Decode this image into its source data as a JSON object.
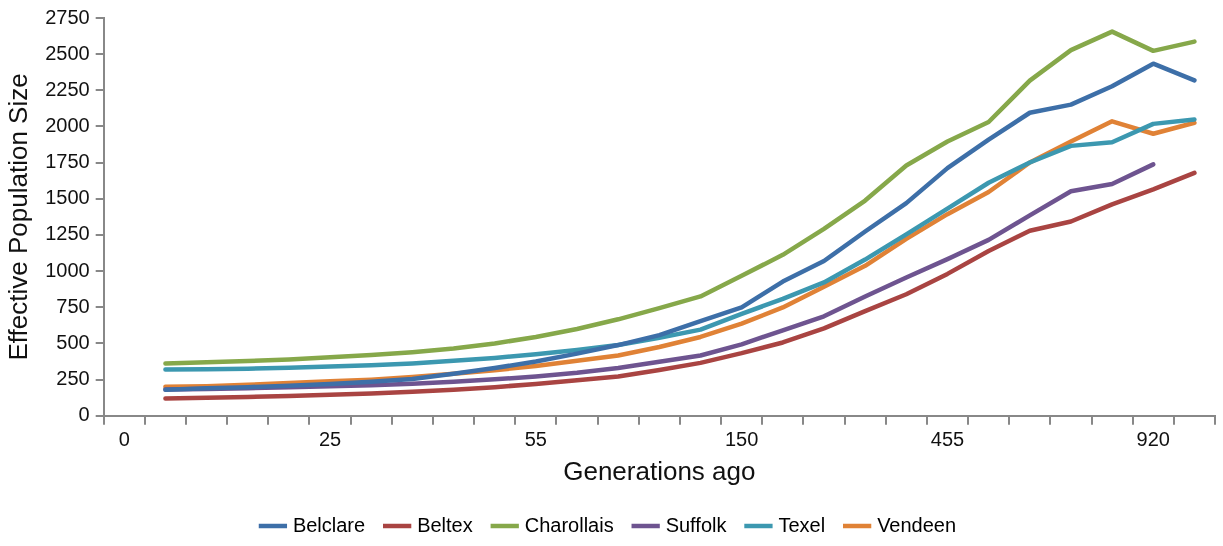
{
  "chart_data": {
    "type": "line",
    "xlabel": "Generations ago",
    "ylabel": "Effective Population Size",
    "categories": [
      "0",
      null,
      null,
      null,
      null,
      "25",
      null,
      null,
      null,
      null,
      "55",
      null,
      null,
      null,
      null,
      "150",
      null,
      null,
      null,
      null,
      "455",
      null,
      null,
      null,
      null,
      "920",
      null
    ],
    "series": [
      {
        "name": "Belclare",
        "color": "#3d6fa8",
        "values": [
          null,
          180,
          190,
          198,
          208,
          220,
          235,
          255,
          290,
          330,
          375,
          430,
          489,
          558,
          655,
          749,
          928,
          1070,
          1274,
          1470,
          1712,
          1909,
          2095,
          2151,
          2278,
          2434,
          2319
        ]
      },
      {
        "name": "Beltex",
        "color": "#a94442",
        "values": [
          null,
          120,
          124,
          130,
          137,
          145,
          155,
          166,
          180,
          198,
          220,
          245,
          272,
          316,
          366,
          433,
          507,
          604,
          724,
          840,
          981,
          1139,
          1279,
          1343,
          1462,
          1565,
          1679
        ]
      },
      {
        "name": "Charollais",
        "color": "#86a84a",
        "values": [
          null,
          362,
          370,
          378,
          390,
          405,
          420,
          440,
          465,
          500,
          545,
          600,
          667,
          744,
          825,
          968,
          1113,
          1292,
          1488,
          1730,
          1896,
          2031,
          2317,
          2528,
          2656,
          2523,
          2587
        ]
      },
      {
        "name": "Suffolk",
        "color": "#6e5490",
        "values": [
          null,
          182,
          186,
          191,
          197,
          204,
          212,
          222,
          236,
          252,
          272,
          298,
          331,
          374,
          417,
          494,
          591,
          688,
          825,
          956,
          1083,
          1216,
          1386,
          1552,
          1603,
          1738,
          null
        ]
      },
      {
        "name": "Texel",
        "color": "#3c98b0",
        "values": [
          null,
          320,
          322,
          326,
          332,
          340,
          350,
          362,
          380,
          400,
          425,
          455,
          489,
          540,
          596,
          705,
          808,
          922,
          1080,
          1254,
          1432,
          1611,
          1751,
          1866,
          1891,
          2018,
          2049
        ]
      },
      {
        "name": "Vendeen",
        "color": "#e08236",
        "values": [
          null,
          200,
          205,
          215,
          226,
          238,
          250,
          268,
          290,
          315,
          345,
          380,
          417,
          476,
          545,
          637,
          749,
          892,
          1037,
          1223,
          1394,
          1547,
          1751,
          1896,
          2036,
          1950,
          2026
        ]
      }
    ],
    "ylim": [
      0,
      2750
    ],
    "yticks": [
      0,
      250,
      500,
      750,
      1000,
      1250,
      1500,
      1750,
      2000,
      2250,
      2500,
      2750
    ],
    "legend": "bottom",
    "line_style": "solid"
  }
}
